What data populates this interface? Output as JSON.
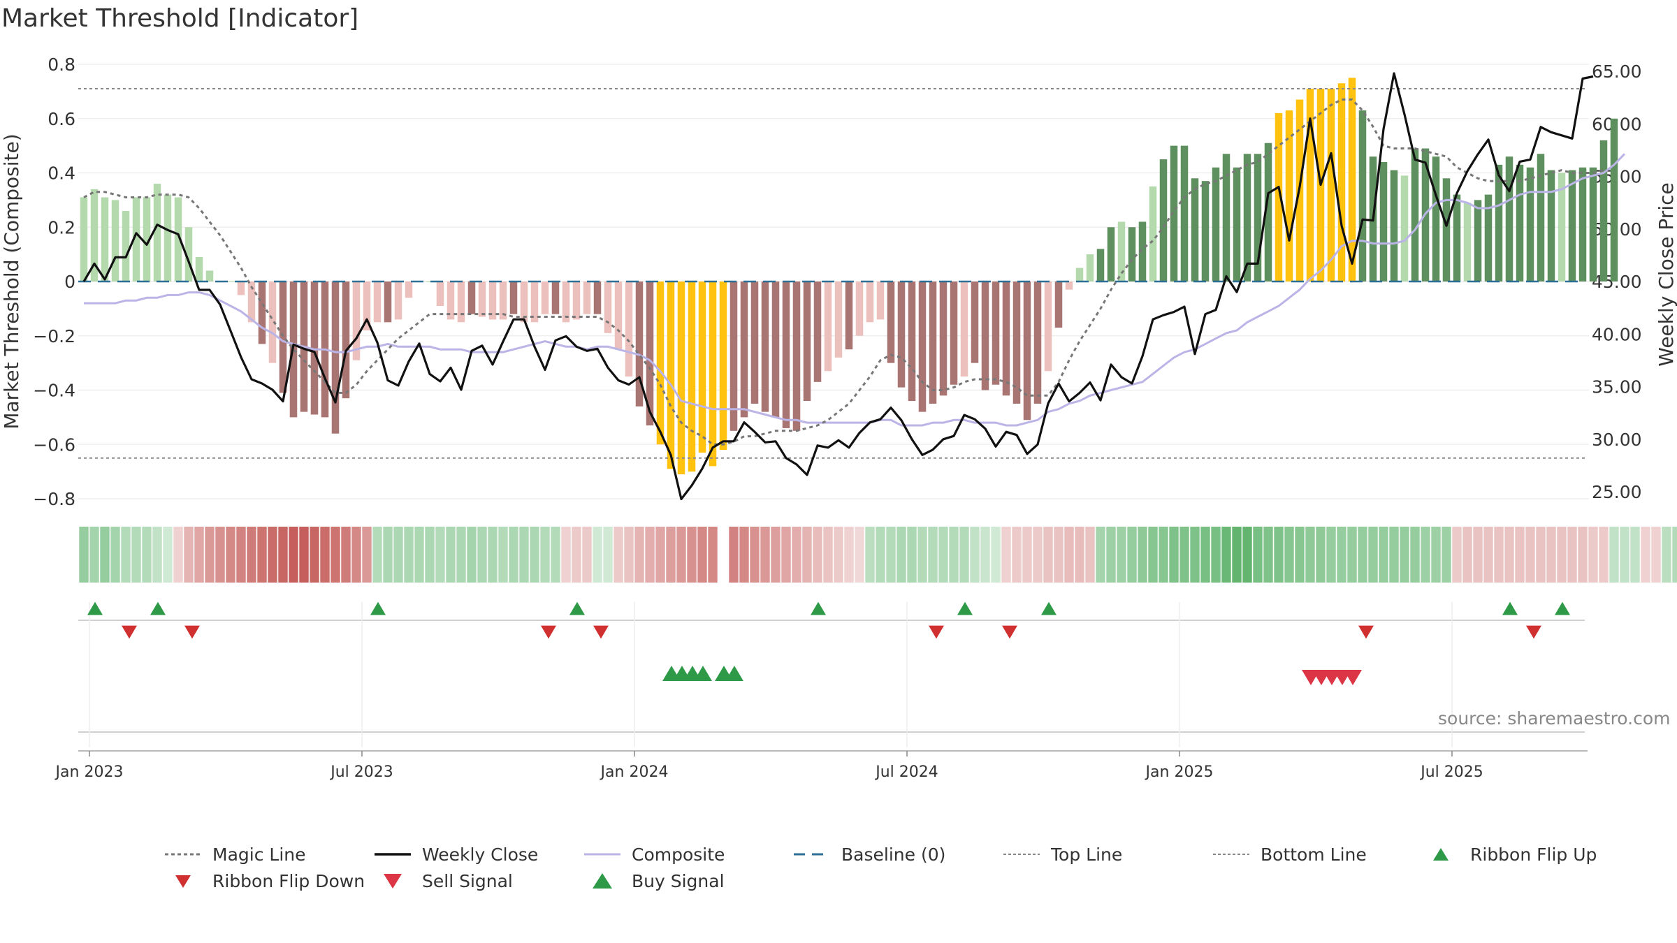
{
  "title": "Market Threshold [Indicator]",
  "source": "source: sharemaestro.com",
  "colors": {
    "magic": "#777777",
    "close": "#111111",
    "composite": "#bbb4e6",
    "baseline": "#2e6f96",
    "guide": "#888888",
    "pos_dark": "#5e8f5e",
    "pos_light": "#b3d9ad",
    "neg_dark": "#a97572",
    "neg_light": "#ecc1bd",
    "extreme": "#ffc20e",
    "ribbon_pos": "#4caa5a",
    "ribbon_neg": "#c0504d",
    "buy": "#2e9a48",
    "sell": "#dc3545",
    "flip_up": "#2e9a48",
    "flip_down": "#d03030"
  },
  "chart_data": {
    "type": "bar",
    "title": "Market Threshold [Indicator]",
    "ylabel": "Market Threshold (Composite)",
    "y2label": "Weekly Close Price",
    "ylim": [
      -0.8,
      0.8
    ],
    "y2lim": [
      25,
      65
    ],
    "yticks": [
      "0.8",
      "0.6",
      "0.4",
      "0.2",
      "0",
      "−0.2",
      "−0.4",
      "−0.6",
      "−0.8"
    ],
    "y2ticks": [
      "65.00",
      "60.00",
      "55.00",
      "50.00",
      "45.00",
      "40.00",
      "35.00",
      "30.00",
      "25.00"
    ],
    "xticks": [
      "Jan 2023",
      "Jul 2023",
      "Jan 2024",
      "Jul 2024",
      "Jan 2025",
      "Jul 2025"
    ],
    "xtick_weeks": [
      0,
      26,
      52,
      78,
      104,
      130
    ],
    "top_line": 0.71,
    "bottom_line": -0.65,
    "baseline": 0,
    "weeks": 144,
    "bars": [
      0.31,
      0.34,
      0.31,
      0.3,
      0.26,
      0.31,
      0.31,
      0.36,
      0.32,
      0.31,
      0.2,
      0.09,
      0.04,
      0,
      0,
      -0.05,
      -0.15,
      -0.23,
      -0.3,
      -0.41,
      -0.5,
      -0.48,
      -0.49,
      -0.5,
      -0.56,
      -0.43,
      -0.29,
      -0.18,
      -0.15,
      -0.15,
      -0.14,
      -0.06,
      0,
      0,
      -0.09,
      -0.14,
      -0.15,
      -0.12,
      -0.13,
      -0.14,
      -0.14,
      -0.12,
      -0.15,
      -0.15,
      -0.12,
      -0.12,
      -0.15,
      -0.14,
      -0.12,
      -0.12,
      -0.19,
      -0.25,
      -0.35,
      -0.46,
      -0.53,
      -0.6,
      -0.69,
      -0.71,
      -0.7,
      -0.63,
      -0.68,
      -0.62,
      -0.55,
      -0.5,
      -0.45,
      -0.48,
      -0.5,
      -0.54,
      -0.55,
      -0.44,
      -0.37,
      -0.33,
      -0.28,
      -0.25,
      -0.2,
      -0.15,
      -0.14,
      -0.3,
      -0.39,
      -0.44,
      -0.48,
      -0.45,
      -0.42,
      -0.38,
      -0.35,
      -0.3,
      -0.4,
      -0.38,
      -0.42,
      -0.45,
      -0.51,
      -0.45,
      -0.33,
      -0.17,
      -0.03,
      0.05,
      0.1,
      0.12,
      0.2,
      0.22,
      0.2,
      0.22,
      0.35,
      0.45,
      0.5,
      0.5,
      0.38,
      0.37,
      0.42,
      0.47,
      0.42,
      0.47,
      0.47,
      0.51,
      0.62,
      0.63,
      0.67,
      0.71,
      0.71,
      0.71,
      0.73,
      0.75,
      0.63,
      0.46,
      0.44,
      0.41,
      0.39,
      0.49,
      0.49,
      0.46,
      0.38,
      0.32,
      0.29,
      0.3,
      0.32,
      0.43,
      0.46,
      0.43,
      0.42,
      0.47,
      0.41,
      0.4,
      0.41,
      0.42,
      0.42,
      0.52,
      0.6
    ],
    "weekly_close": [
      45,
      46.7,
      45.2,
      47.3,
      47.3,
      49.6,
      48.5,
      50.4,
      49.9,
      49.5,
      46.9,
      44.2,
      44.2,
      42.8,
      40.3,
      37.8,
      35.7,
      35.3,
      34.7,
      33.6,
      39,
      38.6,
      38.3,
      35.8,
      33.5,
      38.4,
      39.6,
      41.4,
      39.2,
      35.6,
      35.1,
      37.4,
      39.1,
      36.2,
      35.5,
      36.8,
      34.7,
      38.4,
      38.9,
      37.1,
      39.3,
      41.4,
      41.4,
      38.8,
      36.6,
      39.4,
      39.8,
      38.8,
      38.4,
      38.6,
      36.8,
      35.6,
      35.2,
      35.9,
      32.6,
      30.7,
      28.5,
      24.3,
      25.6,
      27.2,
      29.2,
      29.8,
      29.8,
      31.6,
      30.7,
      29.7,
      29.8,
      28.2,
      27.6,
      26.6,
      29.4,
      29.2,
      29.9,
      29.2,
      30.6,
      31.6,
      31.9,
      33,
      31.8,
      30,
      28.5,
      29,
      30,
      30.3,
      32.3,
      31.9,
      31,
      29.3,
      30.7,
      30.4,
      28.6,
      29.5,
      33.4,
      35.3,
      33.6,
      34.4,
      35.4,
      33.7,
      37.1,
      35.9,
      35.3,
      37.9,
      41.4,
      41.8,
      42.1,
      42.6,
      38.1,
      41.9,
      42.3,
      45.5,
      44,
      46.7,
      46.7,
      53.4,
      54,
      48.9,
      54,
      60.5,
      54.2,
      57.2,
      50.3,
      46.7,
      50.9,
      50.8,
      59.5,
      64.8,
      60.9,
      56.6,
      56.3,
      53.2,
      50.3,
      53.4,
      55.5,
      57.1,
      58.5,
      55.1,
      53.6,
      56.4,
      56.6,
      59.7,
      59.2,
      58.9,
      58.6,
      64.3,
      64.5
    ],
    "magic_line": [
      0.31,
      0.33,
      0.33,
      0.32,
      0.31,
      0.31,
      0.31,
      0.32,
      0.32,
      0.32,
      0.31,
      0.27,
      0.22,
      0.17,
      0.11,
      0.05,
      -0.02,
      -0.08,
      -0.14,
      -0.2,
      -0.25,
      -0.29,
      -0.33,
      -0.37,
      -0.41,
      -0.41,
      -0.38,
      -0.33,
      -0.29,
      -0.25,
      -0.21,
      -0.18,
      -0.15,
      -0.12,
      -0.12,
      -0.12,
      -0.12,
      -0.12,
      -0.12,
      -0.12,
      -0.12,
      -0.13,
      -0.13,
      -0.13,
      -0.13,
      -0.13,
      -0.13,
      -0.13,
      -0.13,
      -0.13,
      -0.15,
      -0.18,
      -0.22,
      -0.27,
      -0.32,
      -0.38,
      -0.46,
      -0.52,
      -0.55,
      -0.57,
      -0.6,
      -0.6,
      -0.59,
      -0.57,
      -0.57,
      -0.56,
      -0.55,
      -0.55,
      -0.55,
      -0.54,
      -0.53,
      -0.51,
      -0.48,
      -0.45,
      -0.4,
      -0.35,
      -0.29,
      -0.27,
      -0.28,
      -0.32,
      -0.37,
      -0.4,
      -0.4,
      -0.39,
      -0.37,
      -0.36,
      -0.36,
      -0.36,
      -0.37,
      -0.39,
      -0.42,
      -0.42,
      -0.42,
      -0.37,
      -0.29,
      -0.22,
      -0.16,
      -0.1,
      -0.03,
      0.03,
      0.08,
      0.12,
      0.15,
      0.2,
      0.26,
      0.31,
      0.34,
      0.36,
      0.37,
      0.39,
      0.41,
      0.43,
      0.44,
      0.47,
      0.5,
      0.53,
      0.56,
      0.59,
      0.62,
      0.65,
      0.67,
      0.67,
      0.63,
      0.57,
      0.5,
      0.49,
      0.49,
      0.49,
      0.48,
      0.47,
      0.46,
      0.42,
      0.4,
      0.38,
      0.37,
      0.37,
      0.37,
      0.37,
      0.38,
      0.39,
      0.4,
      0.41,
      0.4,
      0.4,
      0.4,
      0.41
    ],
    "composite": [
      -0.08,
      -0.08,
      -0.08,
      -0.08,
      -0.07,
      -0.07,
      -0.06,
      -0.06,
      -0.05,
      -0.05,
      -0.04,
      -0.04,
      -0.05,
      -0.07,
      -0.09,
      -0.11,
      -0.14,
      -0.17,
      -0.19,
      -0.22,
      -0.23,
      -0.24,
      -0.25,
      -0.25,
      -0.26,
      -0.26,
      -0.25,
      -0.24,
      -0.24,
      -0.23,
      -0.24,
      -0.24,
      -0.24,
      -0.24,
      -0.25,
      -0.25,
      -0.25,
      -0.26,
      -0.26,
      -0.26,
      -0.26,
      -0.25,
      -0.24,
      -0.23,
      -0.22,
      -0.23,
      -0.24,
      -0.24,
      -0.25,
      -0.24,
      -0.24,
      -0.25,
      -0.26,
      -0.27,
      -0.29,
      -0.33,
      -0.38,
      -0.44,
      -0.45,
      -0.46,
      -0.47,
      -0.47,
      -0.47,
      -0.47,
      -0.48,
      -0.49,
      -0.5,
      -0.51,
      -0.51,
      -0.52,
      -0.52,
      -0.52,
      -0.52,
      -0.52,
      -0.52,
      -0.52,
      -0.51,
      -0.51,
      -0.53,
      -0.53,
      -0.53,
      -0.52,
      -0.52,
      -0.51,
      -0.51,
      -0.52,
      -0.52,
      -0.52,
      -0.53,
      -0.53,
      -0.52,
      -0.51,
      -0.48,
      -0.47,
      -0.45,
      -0.44,
      -0.42,
      -0.41,
      -0.4,
      -0.39,
      -0.38,
      -0.37,
      -0.34,
      -0.31,
      -0.28,
      -0.26,
      -0.25,
      -0.23,
      -0.21,
      -0.19,
      -0.18,
      -0.15,
      -0.13,
      -0.11,
      -0.09,
      -0.06,
      -0.03,
      0.01,
      0.04,
      0.08,
      0.13,
      0.15,
      0.15,
      0.14,
      0.14,
      0.14,
      0.15,
      0.19,
      0.25,
      0.29,
      0.3,
      0.3,
      0.29,
      0.27,
      0.27,
      0.28,
      0.3,
      0.32,
      0.33,
      0.33,
      0.33,
      0.34,
      0.36,
      0.38,
      0.39,
      0.4,
      0.43,
      0.47
    ],
    "ribbon": [
      0.5,
      0.4,
      0.5,
      0.4,
      0.3,
      0.3,
      0.3,
      0.2,
      0.1,
      -0.1,
      -0.3,
      -0.4,
      -0.5,
      -0.55,
      -0.6,
      -0.65,
      -0.7,
      -0.75,
      -0.8,
      -0.85,
      -0.9,
      -0.9,
      -0.85,
      -0.8,
      -0.75,
      -0.7,
      -0.6,
      -0.5,
      0.3,
      0.35,
      0.35,
      0.35,
      0.35,
      0.35,
      0.3,
      0.35,
      0.35,
      0.4,
      0.35,
      0.35,
      0.3,
      0.35,
      0.35,
      0.35,
      0.3,
      0.3,
      -0.1,
      -0.15,
      -0.15,
      0.1,
      0.1,
      -0.15,
      -0.2,
      -0.3,
      -0.35,
      -0.4,
      -0.45,
      -0.5,
      -0.55,
      -0.6,
      -0.6,
      null,
      -0.65,
      -0.6,
      -0.55,
      -0.5,
      -0.45,
      -0.4,
      -0.35,
      -0.3,
      -0.25,
      -0.2,
      -0.15,
      -0.1,
      -0.05,
      0.25,
      0.3,
      0.3,
      0.35,
      0.35,
      0.3,
      0.3,
      0.3,
      0.3,
      0.3,
      0.2,
      0.15,
      0.1,
      -0.1,
      -0.15,
      -0.15,
      -0.15,
      -0.2,
      -0.2,
      -0.25,
      -0.25,
      -0.2,
      0.4,
      0.45,
      0.45,
      0.5,
      0.55,
      0.6,
      0.6,
      0.65,
      0.65,
      0.65,
      0.7,
      0.7,
      0.8,
      0.85,
      0.85,
      0.7,
      0.65,
      0.65,
      0.6,
      0.6,
      0.55,
      0.55,
      0.5,
      0.5,
      0.5,
      0.5,
      0.5,
      0.5,
      0.5,
      0.5,
      0.5,
      0.45,
      0.45,
      0.45,
      -0.15,
      -0.2,
      -0.2,
      -0.2,
      -0.2,
      -0.2,
      -0.2,
      -0.2,
      -0.2,
      -0.2,
      -0.2,
      -0.2,
      -0.2,
      -0.15,
      -0.15,
      0.2,
      0.2,
      0.2,
      -0.1,
      -0.1,
      0.25,
      0.3,
      0.3
    ],
    "ribbon_flip_up": [
      0,
      6,
      27,
      46,
      69,
      83,
      91,
      135,
      140
    ],
    "ribbon_flip_down": [
      3,
      9,
      43,
      48,
      80,
      87,
      121,
      137
    ],
    "buy_signal": [
      55,
      56,
      57,
      58,
      60,
      61
    ],
    "sell_signal": [
      116,
      117,
      118,
      119,
      120
    ]
  },
  "legend": [
    {
      "label": "Magic Line",
      "symbol": "dotted",
      "color": "#777777"
    },
    {
      "label": "Weekly Close",
      "symbol": "solid",
      "color": "#111111"
    },
    {
      "label": "Composite",
      "symbol": "line",
      "color": "#bbb4e6"
    },
    {
      "label": "Baseline (0)",
      "symbol": "dashed",
      "color": "#2e6f96"
    },
    {
      "label": "Top Line",
      "symbol": "thin-dotted",
      "color": "#888888"
    },
    {
      "label": "Bottom Line",
      "symbol": "thin-dotted",
      "color": "#888888"
    },
    {
      "label": "Ribbon Flip Up",
      "symbol": "tri-up-small",
      "color": "#2e9a48"
    },
    {
      "label": "Ribbon Flip Down",
      "symbol": "tri-down-small",
      "color": "#d03030"
    },
    {
      "label": "Sell Signal",
      "symbol": "tri-down",
      "color": "#dc3545"
    },
    {
      "label": "Buy Signal",
      "symbol": "tri-up",
      "color": "#2e9a48"
    }
  ]
}
